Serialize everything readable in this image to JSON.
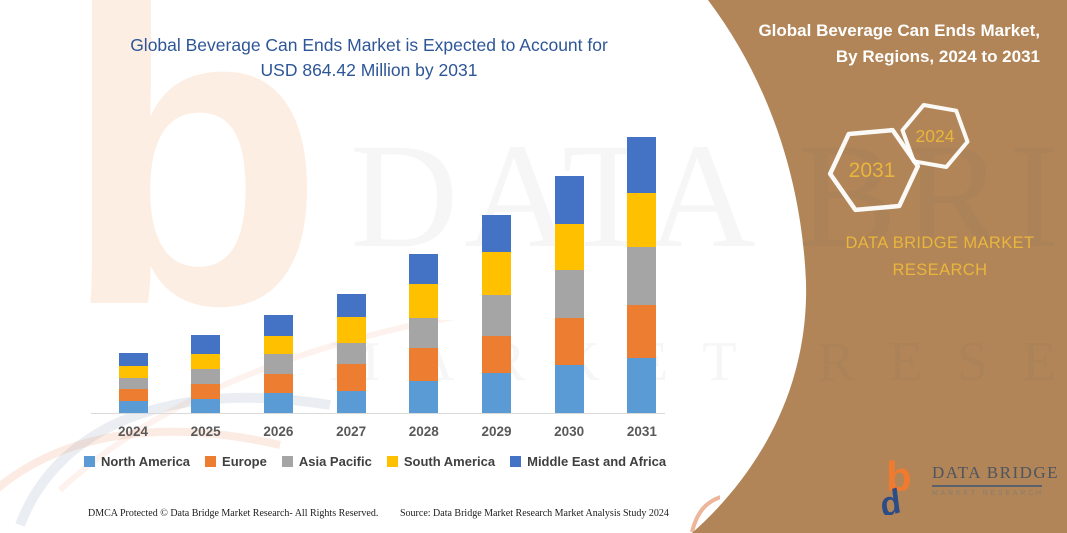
{
  "main": {
    "title_line1": "Global Beverage Can Ends Market is Expected to Account for",
    "title_line2": "USD 864.42 Million by 2031",
    "title_color": "#2e5697"
  },
  "side_panel": {
    "title_line1": "Global Beverage Can Ends Market,",
    "title_line2": "By Regions, 2024 to 2031",
    "panel_color": "#b18557",
    "accent_gold": "#e9b53d",
    "hexagons": [
      {
        "label": "2031"
      },
      {
        "label": "2024"
      }
    ],
    "brand_line1": "DATA BRIDGE MARKET",
    "brand_line2": "RESEARCH"
  },
  "logo": {
    "name": "DATA BRIDGE",
    "subtitle": "MARKET RESEARCH",
    "icon": "data-bridge-bd-monogram",
    "orange": "#ee7b2f",
    "blue": "#2b4c87"
  },
  "watermark": {
    "letter": "b",
    "line1": "DATA BRIDGE",
    "line2": "MARKET RESEARCH"
  },
  "footer": {
    "dmca": "DMCA Protected © Data Bridge Market Research-  All Rights Reserved.",
    "source": "Source: Data Bridge Market Research  Market Analysis Study 2024"
  },
  "chart_data": {
    "type": "bar",
    "stacked": true,
    "title": "Global Beverage Can Ends Market is Expected to Account for USD 864.42 Million by 2031",
    "categories": [
      "2024",
      "2025",
      "2026",
      "2027",
      "2028",
      "2029",
      "2030",
      "2031"
    ],
    "series": [
      {
        "name": "North America",
        "color": "#5b9bd5",
        "values": [
          36.4,
          45.2,
          62.7,
          69.0,
          99.1,
          125.5,
          150.6,
          171.3
        ]
      },
      {
        "name": "Europe",
        "color": "#ed7d31",
        "values": [
          38.9,
          47.0,
          60.8,
          83.7,
          104.8,
          117.0,
          147.4,
          167.5
        ]
      },
      {
        "name": "Asia Pacific",
        "color": "#a5a5a5",
        "values": [
          34.5,
          47.0,
          62.7,
          66.8,
          94.1,
          127.7,
          148.4,
          180.7
        ]
      },
      {
        "name": "South America",
        "color": "#ffc000",
        "values": [
          36.4,
          47.0,
          54.3,
          81.6,
          106.6,
          133.6,
          146.5,
          170.6
        ]
      },
      {
        "name": "Middle East and Africa",
        "color": "#4472c4",
        "values": [
          42.0,
          57.4,
          65.9,
          71.2,
          92.8,
          115.1,
          149.3,
          174.32
        ]
      }
    ],
    "totals": [
      188.2,
      243.6,
      306.4,
      372.3,
      497.4,
      618.9,
      742.2,
      864.42
    ],
    "value_unit": "USD Million",
    "value_axis_visible": false,
    "gridlines": false,
    "legend_position": "bottom",
    "segment_order_bottom_to_top": [
      "North America",
      "Europe",
      "Asia Pacific",
      "South America",
      "Middle East and Africa"
    ]
  }
}
